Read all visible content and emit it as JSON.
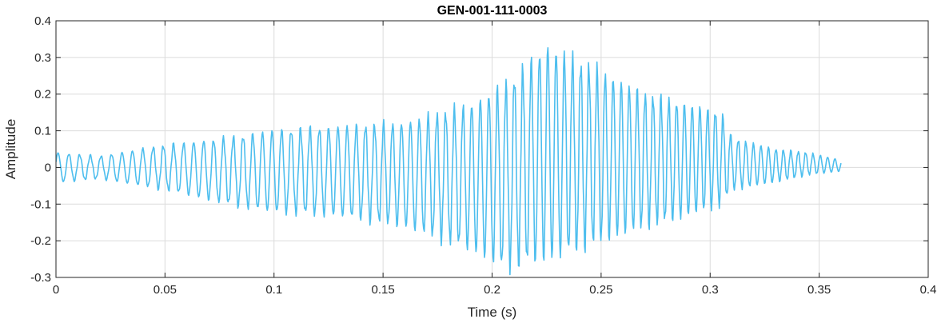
{
  "chart_data": {
    "type": "line",
    "title": "GEN-001-111-0003",
    "xlabel": "Time (s)",
    "ylabel": "Amplitude",
    "xlim": [
      0,
      0.4
    ],
    "ylim": [
      -0.3,
      0.4
    ],
    "xticks": [
      0,
      0.05,
      0.1,
      0.15,
      0.2,
      0.25,
      0.3,
      0.35,
      0.4
    ],
    "xtick_labels": [
      "0",
      "0.05",
      "0.1",
      "0.15",
      "0.2",
      "0.25",
      "0.3",
      "0.35",
      "0.4"
    ],
    "yticks": [
      -0.3,
      -0.2,
      -0.1,
      0,
      0.1,
      0.2,
      0.3,
      0.4
    ],
    "ytick_labels": [
      "-0.3",
      "-0.2",
      "-0.1",
      "0",
      "0.1",
      "0.2",
      "0.3",
      "0.4"
    ],
    "grid": true,
    "colors": {
      "line": "#4DBEEE",
      "grid": "#dcdcdc",
      "axes": "#262626"
    },
    "series": [
      {
        "sample_step": 0.0003,
        "envelope": {
          "t": [
            0,
            0.02,
            0.05,
            0.08,
            0.1,
            0.13,
            0.16,
            0.19,
            0.205,
            0.215,
            0.225,
            0.235,
            0.25,
            0.27,
            0.29,
            0.305,
            0.31,
            0.33,
            0.345,
            0.36
          ],
          "upper": [
            0.04,
            0.03,
            0.06,
            0.08,
            0.1,
            0.11,
            0.12,
            0.17,
            0.22,
            0.27,
            0.33,
            0.3,
            0.26,
            0.2,
            0.17,
            0.15,
            0.08,
            0.05,
            0.04,
            0.02
          ],
          "lower": [
            -0.04,
            -0.03,
            -0.06,
            -0.1,
            -0.12,
            -0.13,
            -0.16,
            -0.22,
            -0.27,
            -0.26,
            -0.25,
            -0.23,
            -0.2,
            -0.16,
            -0.13,
            -0.1,
            -0.06,
            -0.04,
            -0.02,
            -0.01
          ]
        },
        "carrier": {
          "freq_start_hz": 200,
          "freq_end_hz": 300
        },
        "end_t": 0.36
      }
    ]
  }
}
